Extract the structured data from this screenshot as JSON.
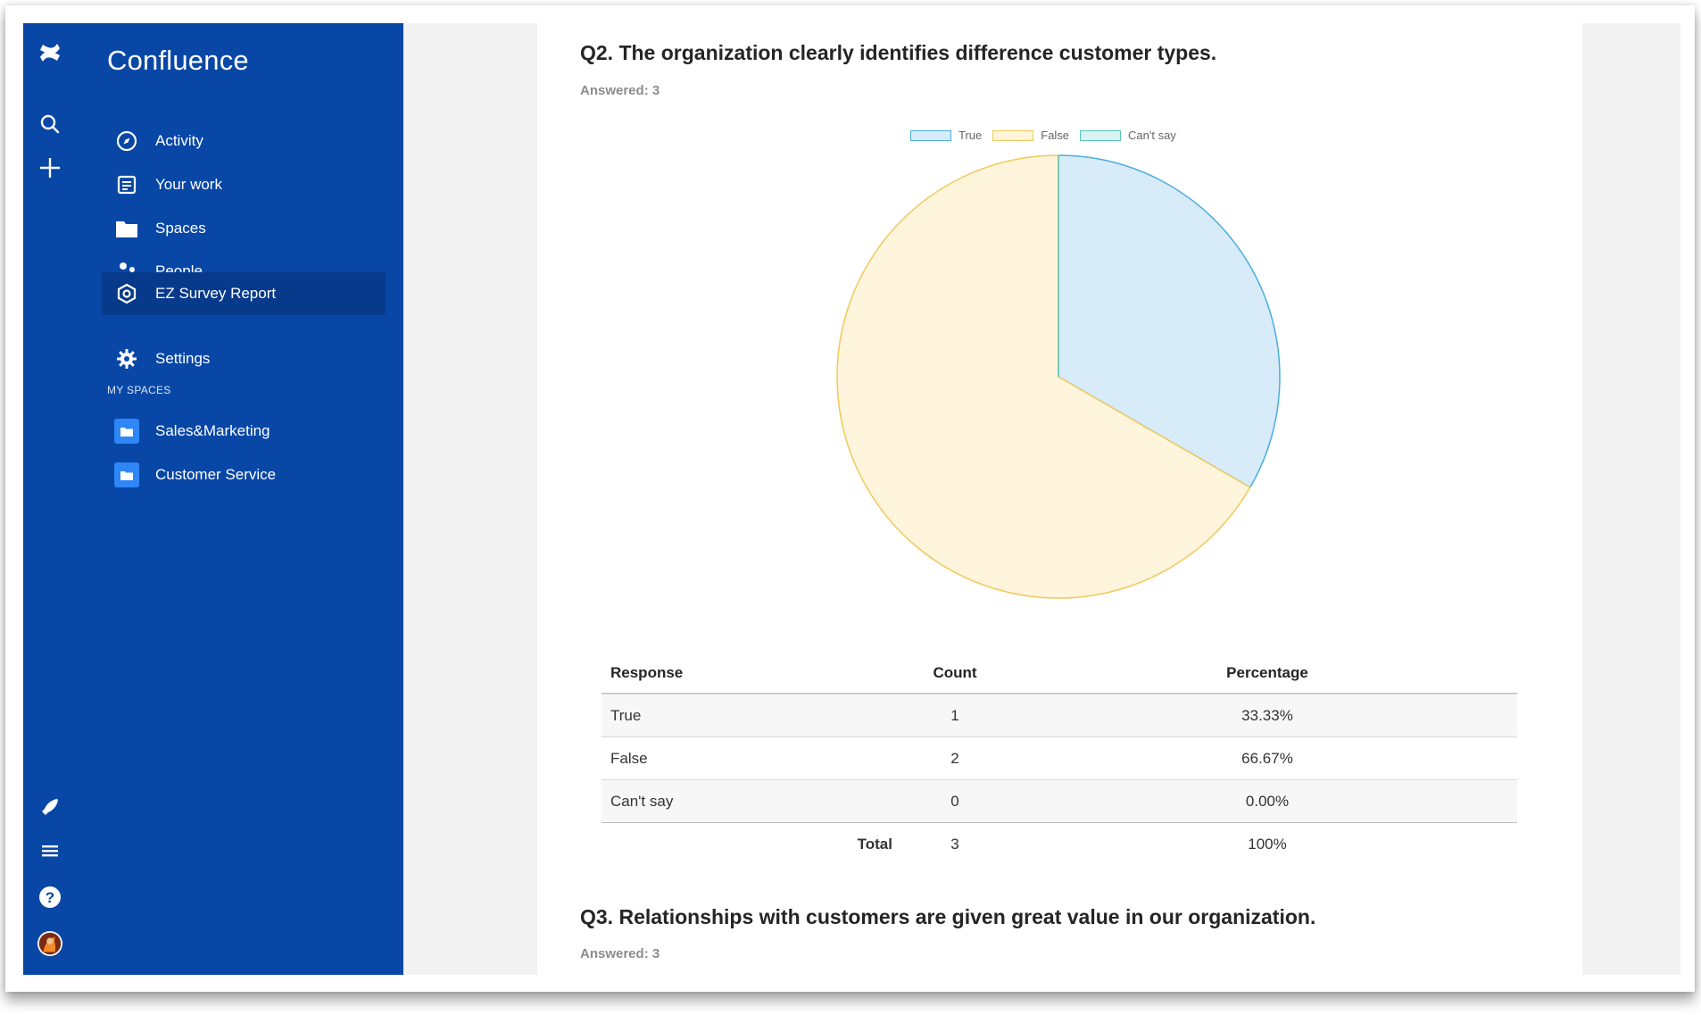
{
  "app": {
    "title": "Confluence"
  },
  "rail": {
    "icons": [
      "confluence-logo-icon",
      "search-icon",
      "plus-icon",
      "rocket-icon",
      "hamburger-icon",
      "help-icon",
      "avatar"
    ]
  },
  "sidebar": {
    "items": [
      {
        "label": "Activity",
        "icon": "compass-icon"
      },
      {
        "label": "Your work",
        "icon": "document-list-icon"
      },
      {
        "label": "Spaces",
        "icon": "folder-icon"
      },
      {
        "label": "People",
        "icon": "people-icon"
      },
      {
        "label": "EZ Survey Report",
        "icon": "hexagon-gear-icon",
        "active": true
      },
      {
        "label": "Settings",
        "icon": "gear-icon"
      }
    ],
    "section_heading": "MY SPACES",
    "spaces": [
      {
        "label": "Sales&Marketing"
      },
      {
        "label": "Customer Service"
      }
    ]
  },
  "question2": {
    "title": "Q2. The organization clearly identifies difference customer types.",
    "answered": "Answered: 3",
    "table": {
      "headers": [
        "Response",
        "Count",
        "Percentage"
      ],
      "rows": [
        {
          "response": "True",
          "count": "1",
          "percentage": "33.33%"
        },
        {
          "response": "False",
          "count": "2",
          "percentage": "66.67%"
        },
        {
          "response": "Can't say",
          "count": "0",
          "percentage": "0.00%"
        }
      ],
      "total": {
        "label": "Total",
        "count": "3",
        "percentage": "100%"
      }
    }
  },
  "question3": {
    "title": "Q3. Relationships with customers are given great value in our organization.",
    "answered": "Answered: 3"
  },
  "colors": {
    "sidebar_bg": "#0847a6",
    "sidebar_active": "#083a8c",
    "true_fill": "#d7ebf9",
    "true_stroke": "#4aaedc",
    "false_fill": "#fff4dc",
    "false_stroke": "#f0c95a",
    "cantsay_fill": "#d8f3f1",
    "cantsay_stroke": "#58c3b9"
  },
  "chart_data": {
    "type": "pie",
    "labels": [
      "True",
      "False",
      "Can't say"
    ],
    "values": [
      1,
      2,
      0
    ],
    "colors": [
      "#d7ebf9",
      "#fff4dc",
      "#d8f3f1"
    ],
    "border_colors": [
      "#4aaedc",
      "#f0c95a",
      "#58c3b9"
    ],
    "legend": "top"
  }
}
